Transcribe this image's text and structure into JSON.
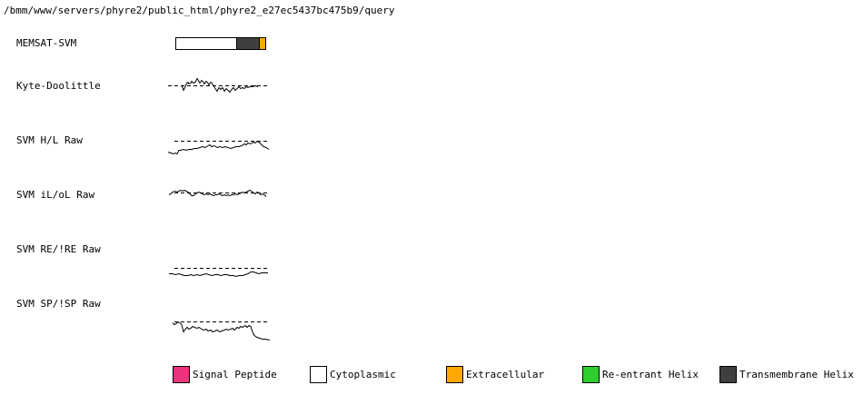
{
  "title": "/bmm/www/servers/phyre2/public_html/phyre2_e27ec5437bc475b9/query",
  "colors": {
    "signal_peptide": "#E8357D",
    "cytoplasmic": "#FFFFFF",
    "extracellular": "#FFA800",
    "re_entrant_helix": "#2FCE2F",
    "transmembrane_helix": "#3F3F3F",
    "plot_stroke": "#000000"
  },
  "memsat_bar": {
    "label": "MEMSAT-SVM",
    "segments": [
      {
        "region": "Cytoplasmic",
        "color": "#FFFFFF",
        "width": 66
      },
      {
        "region": "Transmembrane Helix",
        "color": "#3F3F3F",
        "width": 24
      },
      {
        "region": "Extracellular",
        "color": "#FFA800",
        "width": 6
      }
    ]
  },
  "chart_data": [
    {
      "id": "kyte-doolittle",
      "label": "Kyte-Doolittle",
      "type": "line",
      "description": "Hydropathy sparkline; y values are offsets relative to dashed threshold line at 0",
      "threshold": 0,
      "threshold_span": [
        0,
        112
      ],
      "x_range": [
        0,
        112
      ],
      "y_range": [
        -8,
        9
      ],
      "legend_position": "none",
      "grid": false,
      "points": [
        [
          15,
          0
        ],
        [
          16,
          -2
        ],
        [
          17,
          -5
        ],
        [
          19,
          -1
        ],
        [
          20,
          2
        ],
        [
          22,
          4
        ],
        [
          23,
          2
        ],
        [
          25,
          3
        ],
        [
          26,
          5
        ],
        [
          28,
          3
        ],
        [
          30,
          4
        ],
        [
          32,
          8
        ],
        [
          34,
          5
        ],
        [
          35,
          3
        ],
        [
          37,
          6
        ],
        [
          39,
          4
        ],
        [
          40,
          2
        ],
        [
          42,
          5
        ],
        [
          44,
          3
        ],
        [
          45,
          1
        ],
        [
          47,
          4
        ],
        [
          49,
          2
        ],
        [
          50,
          0
        ],
        [
          52,
          -3
        ],
        [
          54,
          -6
        ],
        [
          56,
          -2
        ],
        [
          58,
          -4
        ],
        [
          60,
          -2
        ],
        [
          62,
          -6
        ],
        [
          64,
          -3
        ],
        [
          66,
          -5
        ],
        [
          68,
          -7
        ],
        [
          70,
          -4
        ],
        [
          72,
          -2
        ],
        [
          74,
          -5
        ],
        [
          76,
          -3
        ],
        [
          78,
          -1
        ],
        [
          80,
          -3
        ],
        [
          82,
          -2
        ],
        [
          84,
          -3
        ],
        [
          86,
          -1
        ],
        [
          88,
          -2
        ],
        [
          90,
          -1
        ],
        [
          93,
          -1
        ],
        [
          96,
          0
        ],
        [
          99,
          -1
        ]
      ]
    },
    {
      "id": "svm-hl-raw",
      "label": "SVM H/L Raw",
      "type": "line",
      "description": "SVM helix/loop raw score; curve stays below dashed threshold, rising to touch it near the right end then dropping",
      "threshold": 0,
      "threshold_span": [
        7,
        110
      ],
      "x_range": [
        0,
        112
      ],
      "y_range": [
        -15,
        1
      ],
      "legend_position": "none",
      "grid": false,
      "points": [
        [
          0,
          -12
        ],
        [
          3,
          -13
        ],
        [
          6,
          -14
        ],
        [
          8,
          -13
        ],
        [
          10,
          -14
        ],
        [
          12,
          -10
        ],
        [
          14,
          -10
        ],
        [
          17,
          -9
        ],
        [
          20,
          -10
        ],
        [
          23,
          -9
        ],
        [
          26,
          -9
        ],
        [
          29,
          -8
        ],
        [
          32,
          -8
        ],
        [
          35,
          -7
        ],
        [
          38,
          -6
        ],
        [
          41,
          -7
        ],
        [
          44,
          -5
        ],
        [
          46,
          -4
        ],
        [
          48,
          -6
        ],
        [
          51,
          -5
        ],
        [
          54,
          -7
        ],
        [
          57,
          -6
        ],
        [
          60,
          -7
        ],
        [
          63,
          -6
        ],
        [
          66,
          -7
        ],
        [
          69,
          -8
        ],
        [
          72,
          -7
        ],
        [
          75,
          -6
        ],
        [
          78,
          -6
        ],
        [
          81,
          -5
        ],
        [
          84,
          -3
        ],
        [
          86,
          -4
        ],
        [
          88,
          -2
        ],
        [
          91,
          -3
        ],
        [
          94,
          -1
        ],
        [
          96,
          -2
        ],
        [
          98,
          0
        ],
        [
          100,
          -1
        ],
        [
          102,
          -3
        ],
        [
          105,
          -6
        ],
        [
          108,
          -7
        ],
        [
          111,
          -9
        ]
      ]
    },
    {
      "id": "svm-il-ol-raw",
      "label": "SVM iL/oL Raw",
      "type": "line",
      "description": "SVM inside/outside loop raw score; small oscillations crossing the dashed threshold",
      "threshold": 0,
      "threshold_span": [
        7,
        110
      ],
      "x_range": [
        0,
        112
      ],
      "y_range": [
        -4,
        4
      ],
      "legend_position": "none",
      "grid": false,
      "points": [
        [
          1,
          -2
        ],
        [
          3,
          -1
        ],
        [
          5,
          1
        ],
        [
          8,
          2
        ],
        [
          10,
          1
        ],
        [
          12,
          2
        ],
        [
          14,
          3
        ],
        [
          16,
          2
        ],
        [
          18,
          3
        ],
        [
          20,
          2
        ],
        [
          22,
          1
        ],
        [
          24,
          -1
        ],
        [
          26,
          -3
        ],
        [
          28,
          -3
        ],
        [
          30,
          -1
        ],
        [
          32,
          0
        ],
        [
          34,
          1
        ],
        [
          36,
          0
        ],
        [
          38,
          -1
        ],
        [
          40,
          -2
        ],
        [
          42,
          -1
        ],
        [
          44,
          -2
        ],
        [
          46,
          -1
        ],
        [
          48,
          -2
        ],
        [
          50,
          -3
        ],
        [
          52,
          -2
        ],
        [
          54,
          -2
        ],
        [
          56,
          -1
        ],
        [
          58,
          -2
        ],
        [
          60,
          -3
        ],
        [
          62,
          -2
        ],
        [
          64,
          -3
        ],
        [
          66,
          -2
        ],
        [
          68,
          -3
        ],
        [
          70,
          -2
        ],
        [
          72,
          -2
        ],
        [
          74,
          -1
        ],
        [
          76,
          -2
        ],
        [
          78,
          -1
        ],
        [
          80,
          0
        ],
        [
          82,
          1
        ],
        [
          84,
          0
        ],
        [
          86,
          1
        ],
        [
          88,
          2
        ],
        [
          90,
          3
        ],
        [
          92,
          2
        ],
        [
          94,
          0
        ],
        [
          96,
          -1
        ],
        [
          98,
          1
        ],
        [
          100,
          0
        ],
        [
          102,
          -2
        ],
        [
          104,
          -1
        ],
        [
          106,
          -2
        ],
        [
          108,
          -4
        ]
      ]
    },
    {
      "id": "svm-re-raw",
      "label": "SVM RE/!RE Raw",
      "type": "line",
      "description": "SVM re-entrant helix raw score; nearly flat curve slightly below dashed threshold with a small rise near the right end",
      "threshold": 0,
      "threshold_span": [
        7,
        110
      ],
      "x_range": [
        0,
        112
      ],
      "y_range": [
        -9,
        1
      ],
      "legend_position": "none",
      "grid": false,
      "points": [
        [
          1,
          -6
        ],
        [
          5,
          -6
        ],
        [
          8,
          -7
        ],
        [
          12,
          -6
        ],
        [
          15,
          -7
        ],
        [
          18,
          -8
        ],
        [
          22,
          -8
        ],
        [
          25,
          -7
        ],
        [
          28,
          -8
        ],
        [
          32,
          -7
        ],
        [
          35,
          -8
        ],
        [
          38,
          -7
        ],
        [
          42,
          -6
        ],
        [
          45,
          -7
        ],
        [
          48,
          -8
        ],
        [
          52,
          -7
        ],
        [
          55,
          -7
        ],
        [
          58,
          -8
        ],
        [
          62,
          -7
        ],
        [
          65,
          -7
        ],
        [
          68,
          -8
        ],
        [
          72,
          -8
        ],
        [
          75,
          -9
        ],
        [
          78,
          -8
        ],
        [
          82,
          -8
        ],
        [
          85,
          -7
        ],
        [
          88,
          -6
        ],
        [
          91,
          -4
        ],
        [
          94,
          -4
        ],
        [
          97,
          -5
        ],
        [
          100,
          -6
        ],
        [
          103,
          -5
        ],
        [
          106,
          -5
        ],
        [
          110,
          -5
        ]
      ]
    },
    {
      "id": "svm-sp-raw",
      "label": "SVM SP/!SP Raw",
      "type": "line",
      "description": "SVM signal peptide raw score; starts at the dashed threshold, wiggles below it, then falls sharply near the right end",
      "threshold": 0,
      "threshold_span": [
        7,
        112
      ],
      "x_range": [
        0,
        112
      ],
      "y_range": [
        -21,
        1
      ],
      "legend_position": "none",
      "grid": false,
      "points": [
        [
          5,
          -1
        ],
        [
          7,
          -3
        ],
        [
          9,
          -2
        ],
        [
          11,
          0
        ],
        [
          13,
          -1
        ],
        [
          15,
          -3
        ],
        [
          17,
          -11
        ],
        [
          19,
          -8
        ],
        [
          21,
          -6
        ],
        [
          23,
          -8
        ],
        [
          25,
          -7
        ],
        [
          27,
          -5
        ],
        [
          29,
          -6
        ],
        [
          32,
          -7
        ],
        [
          34,
          -6
        ],
        [
          37,
          -8
        ],
        [
          39,
          -9
        ],
        [
          42,
          -8
        ],
        [
          44,
          -10
        ],
        [
          47,
          -9
        ],
        [
          49,
          -11
        ],
        [
          52,
          -10
        ],
        [
          54,
          -9
        ],
        [
          57,
          -11
        ],
        [
          59,
          -10
        ],
        [
          62,
          -9
        ],
        [
          64,
          -8
        ],
        [
          66,
          -9
        ],
        [
          69,
          -8
        ],
        [
          71,
          -7
        ],
        [
          73,
          -9
        ],
        [
          76,
          -6
        ],
        [
          78,
          -7
        ],
        [
          80,
          -5
        ],
        [
          82,
          -6
        ],
        [
          85,
          -4
        ],
        [
          87,
          -6
        ],
        [
          89,
          -4
        ],
        [
          91,
          -5
        ],
        [
          93,
          -11
        ],
        [
          95,
          -15
        ],
        [
          98,
          -17
        ],
        [
          101,
          -18
        ],
        [
          104,
          -19
        ],
        [
          107,
          -19
        ],
        [
          112,
          -20
        ]
      ]
    }
  ],
  "legend": {
    "items": [
      {
        "label": "Signal Peptide",
        "color": "#E8357D"
      },
      {
        "label": "Cytoplasmic",
        "color": "#FFFFFF"
      },
      {
        "label": "Extracellular",
        "color": "#FFA800"
      },
      {
        "label": "Re-entrant Helix",
        "color": "#2FCE2F"
      },
      {
        "label": "Transmembrane Helix",
        "color": "#3F3F3F"
      }
    ]
  }
}
